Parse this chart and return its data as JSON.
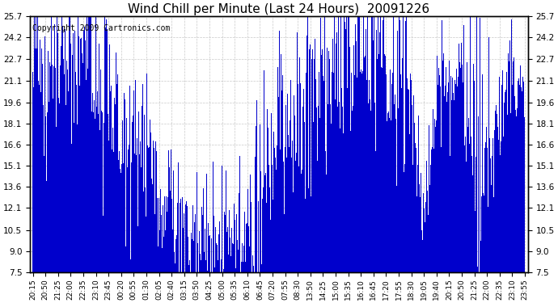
{
  "title": "Wind Chill per Minute (Last 24 Hours)  20091226",
  "copyright": "Copyright 2009 Cartronics.com",
  "bar_color": "#0000CC",
  "background_color": "#FFFFFF",
  "plot_bg_color": "#FFFFFF",
  "grid_color": "#BBBBBB",
  "ylim": [
    7.5,
    25.7
  ],
  "yticks": [
    7.5,
    9.0,
    10.5,
    12.1,
    13.6,
    15.1,
    16.6,
    18.1,
    19.6,
    21.1,
    22.7,
    24.2,
    25.7
  ],
  "xtick_labels": [
    "20:15",
    "20:50",
    "21:25",
    "22:00",
    "22:35",
    "23:10",
    "23:45",
    "00:20",
    "00:55",
    "01:30",
    "02:05",
    "02:40",
    "03:15",
    "03:50",
    "04:25",
    "05:00",
    "05:35",
    "06:10",
    "06:45",
    "07:20",
    "07:55",
    "08:30",
    "13:50",
    "14:25",
    "15:00",
    "15:35",
    "16:10",
    "16:45",
    "17:20",
    "17:55",
    "18:30",
    "19:05",
    "19:40",
    "20:15",
    "20:50",
    "21:25",
    "22:00",
    "22:35",
    "23:10",
    "23:55"
  ],
  "title_fontsize": 11,
  "copyright_fontsize": 7,
  "figwidth": 6.9,
  "figheight": 3.75,
  "dpi": 100
}
